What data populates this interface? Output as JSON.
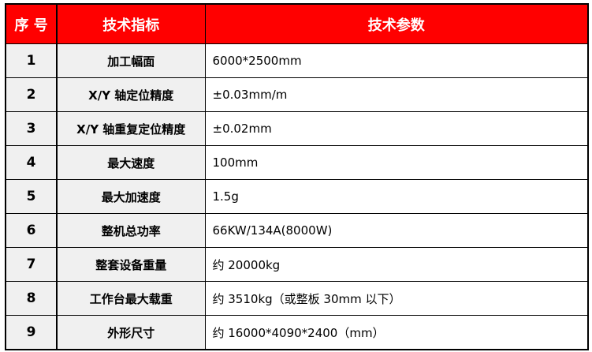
{
  "header": {
    "no": "序 号",
    "indicator": "技术指标",
    "parameter": "技术参数"
  },
  "colors": {
    "header_bg": "#ff0000",
    "header_text": "#ffffff",
    "label_bg": "#f0f0f0"
  },
  "rows": [
    {
      "no": "1",
      "indicator": "加工幅面",
      "parameter": "6000*2500mm"
    },
    {
      "no": "2",
      "indicator": "X/Y 轴定位精度",
      "parameter": "±0.03mm/m"
    },
    {
      "no": "3",
      "indicator": "X/Y 轴重复定位精度",
      "parameter": "±0.02mm"
    },
    {
      "no": "4",
      "indicator": "最大速度",
      "parameter": "100mm"
    },
    {
      "no": "5",
      "indicator": "最大加速度",
      "parameter": "1.5g"
    },
    {
      "no": "6",
      "indicator": "整机总功率",
      "parameter": "66KW/134A(8000W)"
    },
    {
      "no": "7",
      "indicator": "整套设备重量",
      "parameter": "约 20000kg"
    },
    {
      "no": "8",
      "indicator": "工作台最大载重",
      "parameter": "约 3510kg（或整板 30mm 以下）"
    },
    {
      "no": "9",
      "indicator": "外形尺寸",
      "parameter": "约 16000*4090*2400（mm）"
    }
  ]
}
